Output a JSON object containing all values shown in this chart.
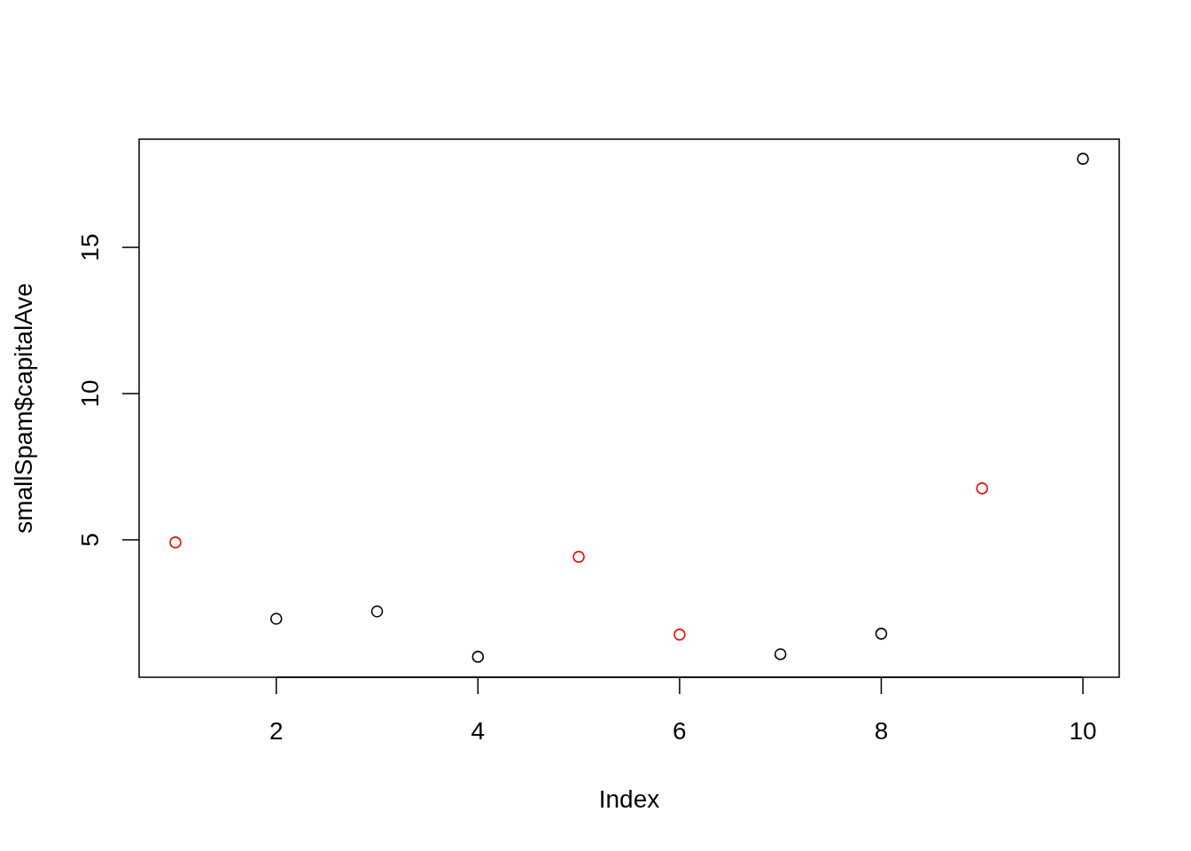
{
  "chart_data": {
    "type": "scatter",
    "xlabel": "Index",
    "ylabel": "smallSpam$capitalAve",
    "x": [
      1,
      2,
      3,
      4,
      5,
      6,
      7,
      8,
      9,
      10
    ],
    "values": [
      4.91,
      2.3,
      2.55,
      1.0,
      4.42,
      1.76,
      1.09,
      1.79,
      6.76,
      18.03
    ],
    "colors": [
      "#ff0000",
      "#000000",
      "#000000",
      "#000000",
      "#ff0000",
      "#ff0000",
      "#000000",
      "#000000",
      "#ff0000",
      "#000000"
    ],
    "xlim": [
      0.64,
      10.36
    ],
    "ylim": [
      0.3,
      18.7
    ],
    "xticks": [
      2,
      4,
      6,
      8,
      10
    ],
    "yticks": [
      5,
      10,
      15
    ],
    "marker": "circle"
  }
}
